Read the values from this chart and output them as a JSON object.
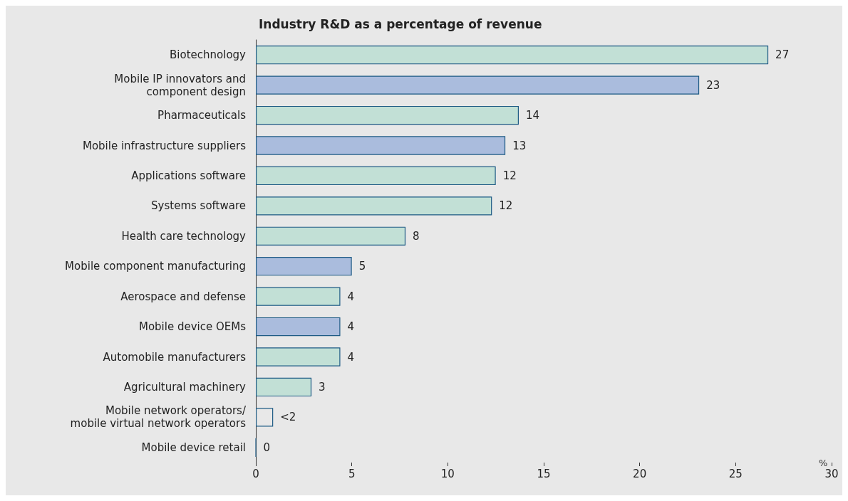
{
  "chart_data": {
    "type": "bar",
    "orientation": "horizontal",
    "title": "Industry R&D as a percentage of revenue",
    "xlabel": "%",
    "categories": [
      "Biotechnology",
      "Mobile IP innovators and\ncomponent design",
      "Pharmaceuticals",
      "Mobile infrastructure suppliers",
      "Applications software",
      "Systems software",
      "Health care technology",
      "Mobile component manufacturing",
      "Aerospace and defense",
      "Mobile device OEMs",
      "Automobile manufacturers",
      "Agricultural machinery",
      "Mobile network operators/\nmobile virtual network operators",
      "Mobile device retail"
    ],
    "values": [
      26.7,
      23.1,
      13.7,
      13.0,
      12.5,
      12.3,
      7.8,
      5.0,
      4.4,
      4.4,
      4.4,
      2.9,
      0.9,
      0
    ],
    "value_labels": [
      "27",
      "23",
      "14",
      "13",
      "12",
      "12",
      "8",
      "5",
      "4",
      "4",
      "4",
      "3",
      "<2",
      "0"
    ],
    "colors": [
      "#c2e0d6",
      "#aabcdd",
      "#c2e0d6",
      "#aabcdd",
      "#c2e0d6",
      "#c2e0d6",
      "#c2e0d6",
      "#aabcdd",
      "#c2e0d6",
      "#aabcdd",
      "#c2e0d6",
      "#c2e0d6",
      "#e8e8e8",
      "#1d5a84"
    ],
    "xlim": [
      0,
      30
    ],
    "xticks": [
      0,
      5,
      10,
      15,
      20,
      25,
      30
    ],
    "grid": false
  }
}
